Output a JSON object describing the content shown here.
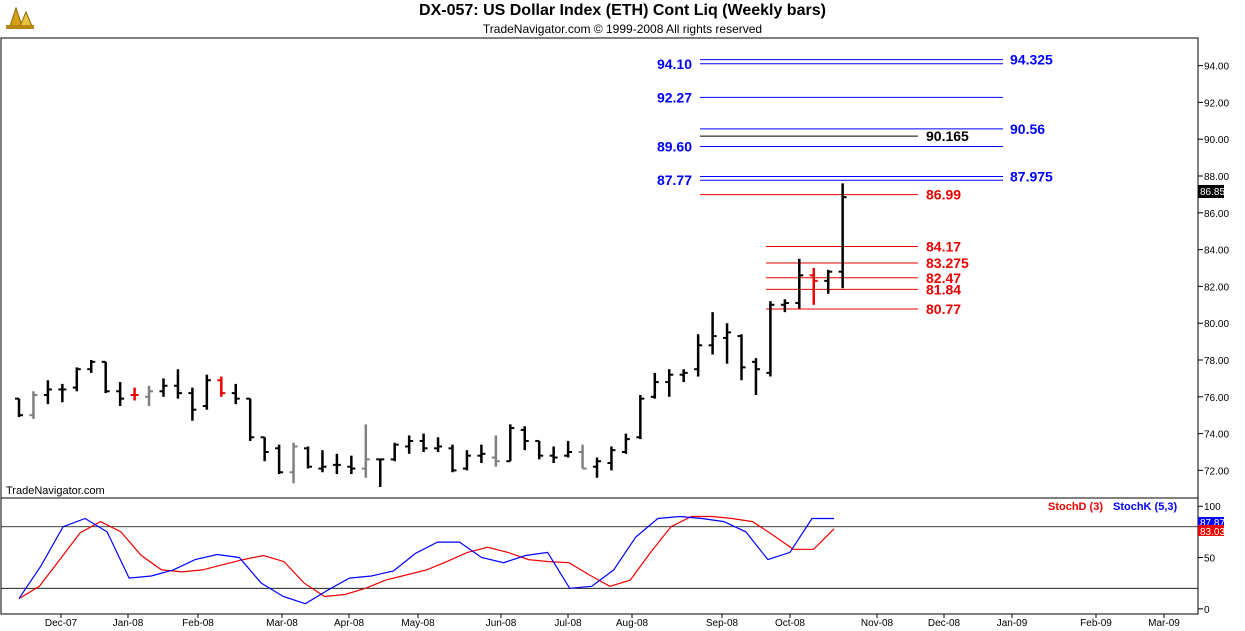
{
  "header": {
    "title": "DX-057:  US Dollar Index (ETH) Cont Liq  (Weekly bars)",
    "subtitle": "TradeNavigator.com © 1999-2008 All rights reserved",
    "watermark": "TradeNavigator.com"
  },
  "colors": {
    "blue": "#0000ff",
    "red": "#ee0000",
    "black": "#000000",
    "gray": "#808080",
    "green": "#00aa00"
  },
  "chart_data": [
    {
      "type": "bar",
      "subtype": "ohlc",
      "ylim": [
        70.5,
        95.5
      ],
      "y_ticks": [
        "72.00",
        "74.00",
        "76.00",
        "78.00",
        "80.00",
        "82.00",
        "84.00",
        "86.00",
        "88.00",
        "90.00",
        "92.00",
        "94.00"
      ],
      "x_ticks": [
        "Dec-07",
        "Jan-08",
        "Feb-08",
        "Mar-08",
        "Apr-08",
        "May-08",
        "Jun-08",
        "Jul-08",
        "Aug-08",
        "Sep-08",
        "Oct-08",
        "Nov-08",
        "Dec-08",
        "Jan-09",
        "Feb-09",
        "Mar-09"
      ],
      "last_price": "86.85",
      "bars": [
        {
          "o": 75.9,
          "h": 75.9,
          "l": 74.9,
          "c": 75.0,
          "col": "black"
        },
        {
          "o": 75.0,
          "h": 76.3,
          "l": 74.8,
          "c": 76.1,
          "col": "gray"
        },
        {
          "o": 76.1,
          "h": 76.9,
          "l": 75.6,
          "c": 76.4,
          "col": "black"
        },
        {
          "o": 76.4,
          "h": 76.7,
          "l": 75.7,
          "c": 76.4,
          "col": "black"
        },
        {
          "o": 76.5,
          "h": 77.6,
          "l": 76.3,
          "c": 77.5,
          "col": "black"
        },
        {
          "o": 77.5,
          "h": 78.0,
          "l": 77.3,
          "c": 77.9,
          "col": "black"
        },
        {
          "o": 77.9,
          "h": 77.9,
          "l": 76.2,
          "c": 76.3,
          "col": "black"
        },
        {
          "o": 76.3,
          "h": 76.8,
          "l": 75.5,
          "c": 75.9,
          "col": "black"
        },
        {
          "o": 76.1,
          "h": 76.5,
          "l": 75.8,
          "c": 76.1,
          "col": "red"
        },
        {
          "o": 76.0,
          "h": 76.6,
          "l": 75.5,
          "c": 76.3,
          "col": "gray"
        },
        {
          "o": 76.3,
          "h": 77.0,
          "l": 76.0,
          "c": 76.6,
          "col": "black"
        },
        {
          "o": 76.6,
          "h": 77.5,
          "l": 75.9,
          "c": 76.2,
          "col": "black"
        },
        {
          "o": 76.2,
          "h": 76.5,
          "l": 74.7,
          "c": 75.3,
          "col": "black"
        },
        {
          "o": 75.5,
          "h": 77.2,
          "l": 75.3,
          "c": 76.9,
          "col": "black"
        },
        {
          "o": 76.9,
          "h": 77.1,
          "l": 76.0,
          "c": 76.2,
          "col": "red"
        },
        {
          "o": 76.2,
          "h": 76.7,
          "l": 75.6,
          "c": 75.9,
          "col": "black"
        },
        {
          "o": 75.9,
          "h": 75.9,
          "l": 73.6,
          "c": 73.8,
          "col": "black"
        },
        {
          "o": 73.8,
          "h": 73.8,
          "l": 72.5,
          "c": 73.0,
          "col": "black"
        },
        {
          "o": 73.2,
          "h": 73.4,
          "l": 71.8,
          "c": 71.9,
          "col": "black"
        },
        {
          "o": 71.9,
          "h": 73.5,
          "l": 71.3,
          "c": 73.3,
          "col": "gray"
        },
        {
          "o": 73.2,
          "h": 73.3,
          "l": 72.1,
          "c": 72.2,
          "col": "black"
        },
        {
          "o": 72.1,
          "h": 73.1,
          "l": 71.9,
          "c": 72.2,
          "col": "black"
        },
        {
          "o": 72.3,
          "h": 72.9,
          "l": 71.8,
          "c": 72.3,
          "col": "black"
        },
        {
          "o": 72.2,
          "h": 72.8,
          "l": 71.8,
          "c": 72.1,
          "col": "black"
        },
        {
          "o": 72.1,
          "h": 74.5,
          "l": 71.6,
          "c": 72.6,
          "col": "gray"
        },
        {
          "o": 72.6,
          "h": 72.6,
          "l": 71.1,
          "c": 72.6,
          "col": "black"
        },
        {
          "o": 72.6,
          "h": 73.5,
          "l": 72.5,
          "c": 73.4,
          "col": "black"
        },
        {
          "o": 73.3,
          "h": 73.9,
          "l": 72.9,
          "c": 73.6,
          "col": "black"
        },
        {
          "o": 73.6,
          "h": 74.0,
          "l": 73.0,
          "c": 73.2,
          "col": "black"
        },
        {
          "o": 73.2,
          "h": 73.8,
          "l": 73.0,
          "c": 73.3,
          "col": "black"
        },
        {
          "o": 73.2,
          "h": 73.4,
          "l": 71.9,
          "c": 72.0,
          "col": "black"
        },
        {
          "o": 72.1,
          "h": 73.1,
          "l": 72.0,
          "c": 72.8,
          "col": "black"
        },
        {
          "o": 72.8,
          "h": 73.4,
          "l": 72.4,
          "c": 72.9,
          "col": "black"
        },
        {
          "o": 72.7,
          "h": 73.9,
          "l": 72.2,
          "c": 72.5,
          "col": "gray"
        },
        {
          "o": 72.5,
          "h": 74.5,
          "l": 72.5,
          "c": 74.3,
          "col": "black"
        },
        {
          "o": 74.2,
          "h": 74.4,
          "l": 73.1,
          "c": 73.6,
          "col": "black"
        },
        {
          "o": 73.6,
          "h": 73.6,
          "l": 72.6,
          "c": 72.8,
          "col": "black"
        },
        {
          "o": 72.8,
          "h": 73.3,
          "l": 72.4,
          "c": 72.7,
          "col": "black"
        },
        {
          "o": 72.8,
          "h": 73.6,
          "l": 72.7,
          "c": 73.0,
          "col": "black"
        },
        {
          "o": 73.0,
          "h": 73.4,
          "l": 72.1,
          "c": 72.1,
          "col": "gray"
        },
        {
          "o": 72.2,
          "h": 72.7,
          "l": 71.6,
          "c": 72.5,
          "col": "black"
        },
        {
          "o": 72.4,
          "h": 73.3,
          "l": 72.0,
          "c": 73.1,
          "col": "black"
        },
        {
          "o": 73.0,
          "h": 74.0,
          "l": 72.9,
          "c": 73.7,
          "col": "black"
        },
        {
          "o": 73.8,
          "h": 76.1,
          "l": 73.7,
          "c": 75.9,
          "col": "black"
        },
        {
          "o": 76.0,
          "h": 77.3,
          "l": 75.9,
          "c": 76.8,
          "col": "black"
        },
        {
          "o": 76.8,
          "h": 77.5,
          "l": 76.0,
          "c": 77.2,
          "col": "black"
        },
        {
          "o": 77.2,
          "h": 77.5,
          "l": 76.8,
          "c": 77.3,
          "col": "black"
        },
        {
          "o": 77.5,
          "h": 79.4,
          "l": 77.1,
          "c": 78.8,
          "col": "black"
        },
        {
          "o": 78.8,
          "h": 80.6,
          "l": 78.3,
          "c": 79.3,
          "col": "black"
        },
        {
          "o": 79.2,
          "h": 80.0,
          "l": 77.8,
          "c": 79.5,
          "col": "black"
        },
        {
          "o": 79.3,
          "h": 79.4,
          "l": 76.9,
          "c": 77.6,
          "col": "black"
        },
        {
          "o": 77.9,
          "h": 78.1,
          "l": 76.1,
          "c": 77.5,
          "col": "black"
        },
        {
          "o": 77.3,
          "h": 81.2,
          "l": 77.1,
          "c": 81.0,
          "col": "black"
        },
        {
          "o": 81.0,
          "h": 81.3,
          "l": 80.6,
          "c": 81.1,
          "col": "black"
        },
        {
          "o": 81.1,
          "h": 83.5,
          "l": 80.8,
          "c": 82.6,
          "col": "black"
        },
        {
          "o": 82.6,
          "h": 83.0,
          "l": 81.0,
          "c": 82.3,
          "col": "red"
        },
        {
          "o": 82.3,
          "h": 82.9,
          "l": 81.6,
          "c": 82.8,
          "col": "black"
        },
        {
          "o": 82.8,
          "h": 87.6,
          "l": 81.9,
          "c": 86.85,
          "col": "black"
        }
      ],
      "levels": [
        {
          "label": "94.10",
          "value": 94.1,
          "side": "left",
          "color": "blue"
        },
        {
          "label": "94.325",
          "value": 94.325,
          "side": "right",
          "color": "blue"
        },
        {
          "label": "92.27",
          "value": 92.27,
          "side": "left",
          "color": "blue"
        },
        {
          "label": "90.56",
          "value": 90.56,
          "side": "right",
          "color": "blue"
        },
        {
          "label": "90.165",
          "value": 90.165,
          "side": "mid",
          "color": "black"
        },
        {
          "label": "89.60",
          "value": 89.6,
          "side": "left",
          "color": "blue"
        },
        {
          "label": "87.77",
          "value": 87.77,
          "side": "left",
          "color": "blue"
        },
        {
          "label": "87.975",
          "value": 87.975,
          "side": "right",
          "color": "blue"
        },
        {
          "label": "86.99",
          "value": 86.99,
          "side": "red",
          "color": "red"
        },
        {
          "label": "84.17",
          "value": 84.17,
          "side": "red2",
          "color": "red"
        },
        {
          "label": "83.275",
          "value": 83.275,
          "side": "red2",
          "color": "red"
        },
        {
          "label": "82.47",
          "value": 82.47,
          "side": "red2",
          "color": "red"
        },
        {
          "label": "81.84",
          "value": 81.84,
          "side": "red2",
          "color": "red"
        },
        {
          "label": "80.77",
          "value": 80.77,
          "side": "red2",
          "color": "red"
        }
      ]
    },
    {
      "type": "line",
      "ylim": [
        -5,
        108
      ],
      "y_ticks": [
        "0",
        "50",
        "100"
      ],
      "reference_lines": [
        20,
        80
      ],
      "series": [
        {
          "name": "StochD (3)",
          "color": "red",
          "values": [
            10,
            22,
            48,
            74,
            85,
            75,
            52,
            38,
            36,
            38,
            43,
            48,
            52,
            46,
            25,
            12,
            14,
            20,
            28,
            33,
            38,
            46,
            55,
            60,
            55,
            48,
            46,
            45,
            33,
            22,
            28,
            55,
            80,
            90,
            90,
            88,
            85,
            72,
            58,
            58,
            78
          ]
        },
        {
          "name": "StochK (5,3)",
          "color": "blue",
          "values": [
            10,
            42,
            80,
            88,
            75,
            30,
            32,
            38,
            48,
            53,
            50,
            25,
            12,
            5,
            18,
            30,
            32,
            37,
            54,
            65,
            65,
            50,
            45,
            52,
            55,
            20,
            22,
            38,
            70,
            88,
            90,
            88,
            85,
            75,
            48,
            55,
            88,
            88
          ]
        }
      ],
      "last_d": "83.03",
      "last_k": "87.87"
    }
  ]
}
